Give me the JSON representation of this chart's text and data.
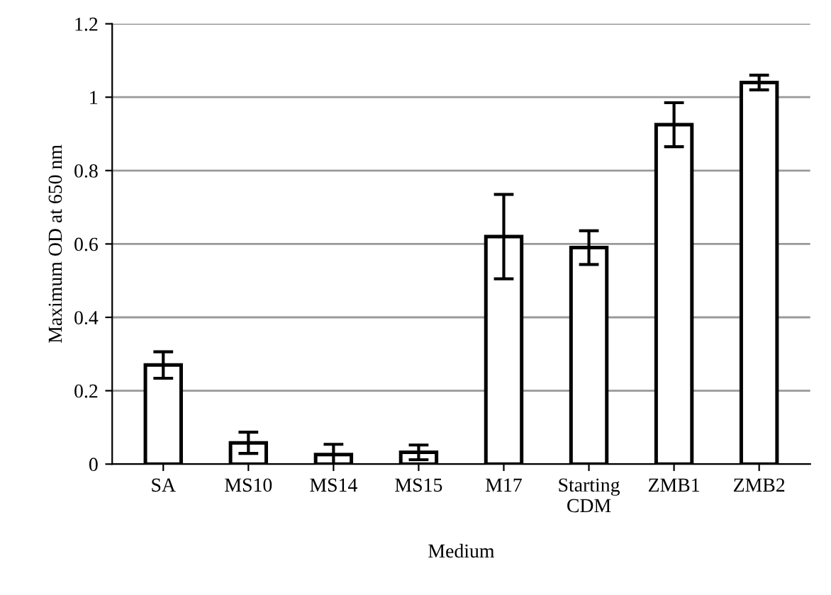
{
  "chart_data": {
    "type": "bar",
    "xlabel": "Medium",
    "ylabel": "Maximum OD at 650 nm",
    "categories": [
      "SA",
      "MS10",
      "MS14",
      "MS15",
      "M17",
      "Starting\nCDM",
      "ZMB1",
      "ZMB2"
    ],
    "values": [
      0.27,
      0.058,
      0.026,
      0.032,
      0.62,
      0.59,
      0.925,
      1.04
    ],
    "errors": [
      0.036,
      0.029,
      0.028,
      0.02,
      0.115,
      0.046,
      0.06,
      0.02
    ],
    "color": "#ffffff",
    "ylim": [
      0,
      1.2
    ],
    "yticks": [
      0,
      0.2,
      0.4,
      0.6,
      0.8,
      1,
      1.2
    ],
    "grid": "y"
  }
}
